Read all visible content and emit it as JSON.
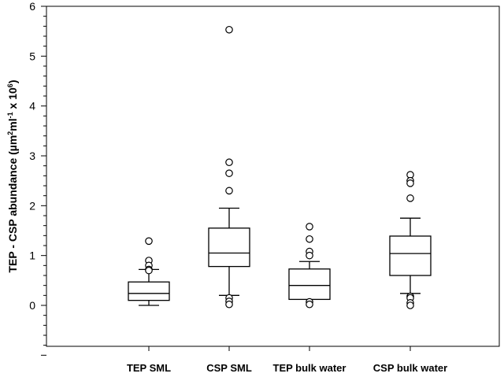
{
  "chart_data": {
    "type": "box",
    "ylabel": {
      "main": "TEP - CSP abundance (µm",
      "sup1": "2",
      "mid1": "ml",
      "sup2": "-1",
      "mid2": " x 10",
      "sup3": "6",
      "end": ")"
    },
    "ylim": [
      -1,
      6
    ],
    "yticks": [
      0,
      1,
      2,
      3,
      4,
      5,
      6
    ],
    "grid": false,
    "categories": [
      "TEP SML",
      "CSP SML",
      "TEP bulk water",
      "CSP bulk water"
    ],
    "boxes": [
      {
        "category": "TEP SML",
        "whisker_low": 0.0,
        "q1": 0.1,
        "median": 0.24,
        "q3": 0.47,
        "whisker_high": 0.72,
        "outliers": [
          1.29,
          0.9,
          0.8,
          0.72,
          0.7
        ]
      },
      {
        "category": "CSP SML",
        "whisker_low": 0.2,
        "q1": 0.78,
        "median": 1.05,
        "q3": 1.55,
        "whisker_high": 1.95,
        "outliers": [
          5.53,
          2.87,
          2.65,
          2.3,
          0.15,
          0.08,
          0.02
        ]
      },
      {
        "category": "TEP bulk water",
        "whisker_low": 0.12,
        "q1": 0.12,
        "median": 0.4,
        "q3": 0.73,
        "whisker_high": 0.88,
        "outliers": [
          1.58,
          1.33,
          1.08,
          1.0,
          0.07,
          0.02
        ]
      },
      {
        "category": "CSP bulk water",
        "whisker_low": 0.24,
        "q1": 0.6,
        "median": 1.04,
        "q3": 1.39,
        "whisker_high": 1.75,
        "outliers": [
          2.62,
          2.5,
          2.45,
          2.15,
          0.18,
          0.15,
          0.05,
          0.0
        ]
      }
    ]
  }
}
